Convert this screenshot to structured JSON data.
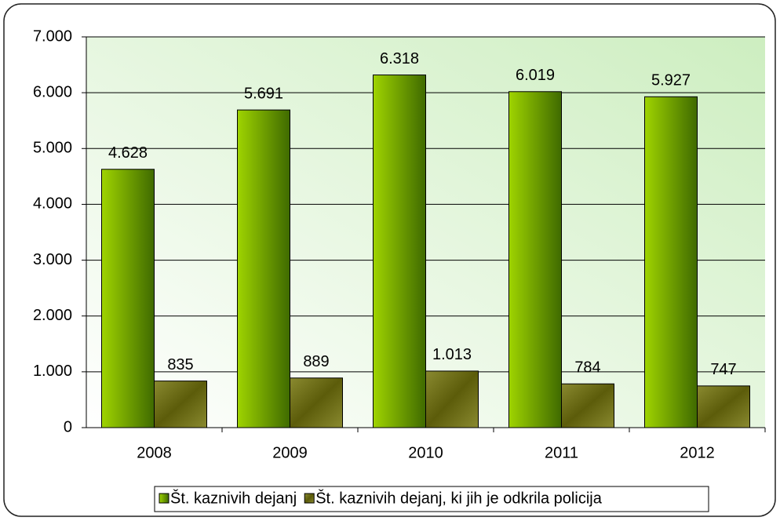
{
  "chart_data": {
    "type": "bar",
    "categories": [
      "2008",
      "2009",
      "2010",
      "2011",
      "2012"
    ],
    "series": [
      {
        "name": "Št. kaznivih dejanj",
        "color": "#6f9f00",
        "values": [
          4628,
          5691,
          6318,
          6019,
          5927
        ],
        "value_labels": [
          "4.628",
          "5.691",
          "6.318",
          "6.019",
          "5.927"
        ]
      },
      {
        "name": "Št. kaznivih dejanj, ki jih je odkrila policija",
        "color": "#5c5c0a",
        "values": [
          835,
          889,
          1013,
          784,
          747
        ],
        "value_labels": [
          "835",
          "889",
          "1.013",
          "784",
          "747"
        ]
      }
    ],
    "ylim": [
      0,
      7000
    ],
    "yticks": [
      0,
      {
        "value": 1000,
        "label": "1.000"
      },
      {
        "value": 2000,
        "label": "2.000"
      },
      {
        "value": 3000,
        "label": "3.000"
      },
      {
        "value": 4000,
        "label": "4.000"
      },
      {
        "value": 5000,
        "label": "5.000"
      },
      {
        "value": 6000,
        "label": "6.000"
      },
      {
        "value": 7000,
        "label": "7.000"
      }
    ],
    "grid": true,
    "legend": "bottom"
  }
}
